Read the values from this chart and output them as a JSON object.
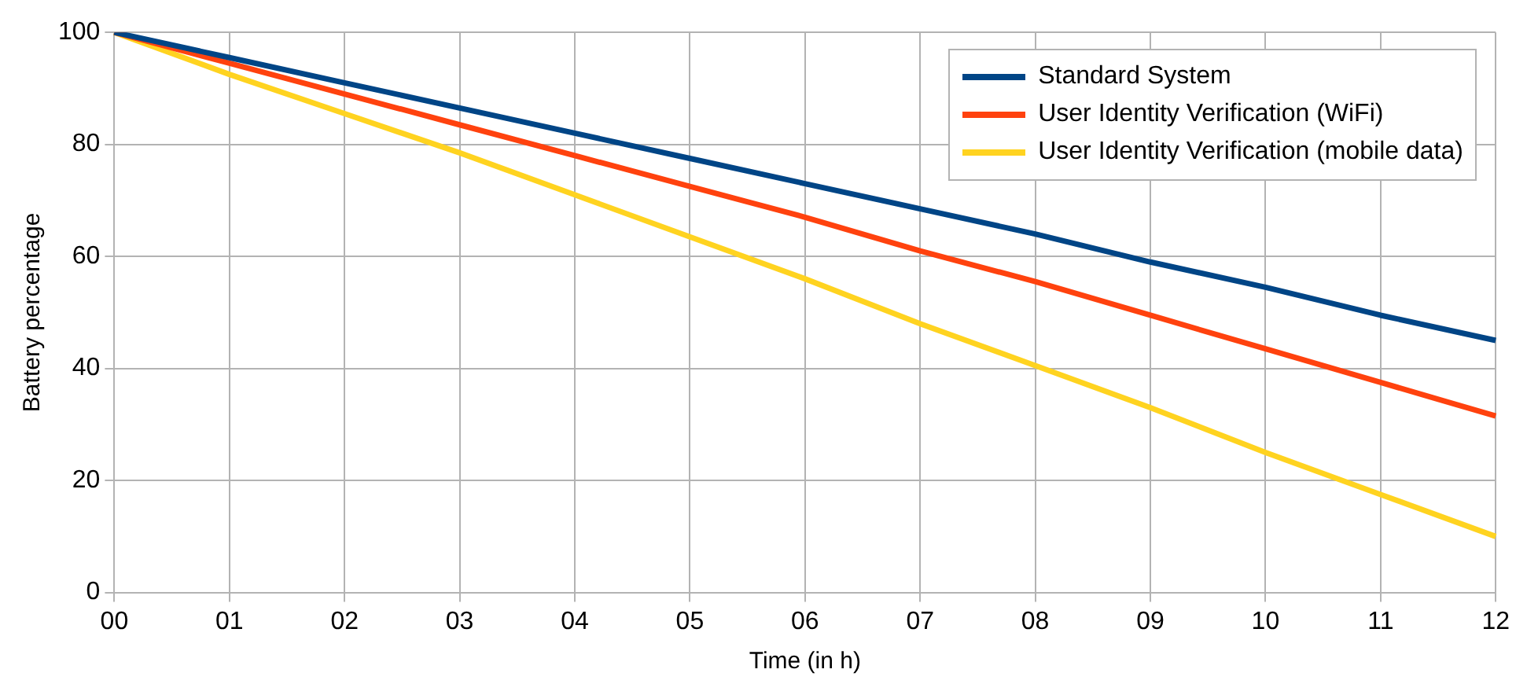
{
  "chart_data": {
    "type": "line",
    "xlabel": "Time (in h)",
    "ylabel": "Battery percentage",
    "categories": [
      "00",
      "01",
      "02",
      "03",
      "04",
      "05",
      "06",
      "07",
      "08",
      "09",
      "10",
      "11",
      "12"
    ],
    "series": [
      {
        "name": "Standard System",
        "color": "#004586",
        "values": [
          100,
          95.5,
          91,
          86.5,
          82,
          77.5,
          73,
          68.5,
          64,
          59,
          54.5,
          49.5,
          45
        ]
      },
      {
        "name": "User Identity Verification (WiFi)",
        "color": "#ff420e",
        "values": [
          100,
          94.5,
          89,
          83.5,
          78,
          72.5,
          67,
          61,
          55.5,
          49.5,
          43.5,
          37.5,
          31.5
        ]
      },
      {
        "name": "User Identity Verification (mobile data)",
        "color": "#ffd320",
        "values": [
          100,
          92.5,
          85.5,
          78.5,
          71,
          63.5,
          56,
          48,
          40.5,
          33,
          25,
          17.5,
          10
        ]
      }
    ],
    "ylim": [
      0,
      100
    ],
    "yticks": [
      0,
      20,
      40,
      60,
      80,
      100
    ],
    "grid": true,
    "legend": "top right",
    "marker": "none",
    "line_style": "solid"
  }
}
